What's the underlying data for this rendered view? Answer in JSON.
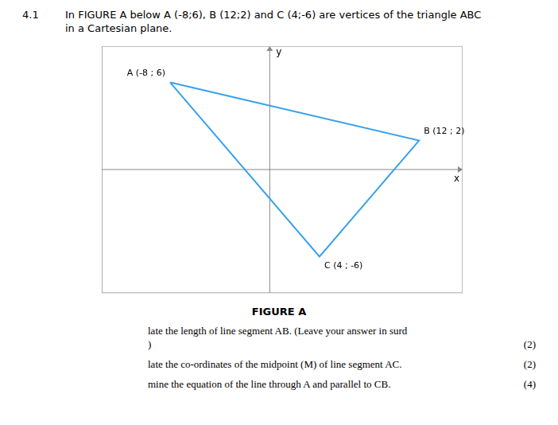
{
  "chart_data": {
    "type": "line",
    "title_number": "4.1",
    "title": "In FIGURE A below A (-8;6), B (12;2) and C (4;-6) are vertices of the triangle ABC\nin a Cartesian plane.",
    "x_label": "x",
    "y_label": "y",
    "x": [
      -8,
      12,
      4,
      -8
    ],
    "values": [
      6,
      2,
      -6,
      6
    ],
    "annotations": [
      {
        "text": "A (-8 ; 6)",
        "x": -8,
        "y": 6
      },
      {
        "text": "B (12 ; 2)",
        "x": 12,
        "y": 2
      },
      {
        "text": "C (4 ; -6)",
        "x": 4,
        "y": -6
      }
    ],
    "xlim": [
      -13.5,
      15.5
    ],
    "ylim": [
      -8.5,
      8.5
    ],
    "grid": false,
    "tick_labels": false,
    "caption": "FIGURE A",
    "questions": [
      {
        "lines": [
          "late the length of line segment AB.  (Leave your answer in surd",
          ")"
        ],
        "mark": "(2)"
      },
      {
        "lines": [
          "late the co-ordinates of the midpoint (M) of line segment AC."
        ],
        "mark": "(2)"
      },
      {
        "lines": [
          "mine the equation of the line through A and parallel to CB."
        ],
        "mark": "(4)"
      }
    ]
  }
}
